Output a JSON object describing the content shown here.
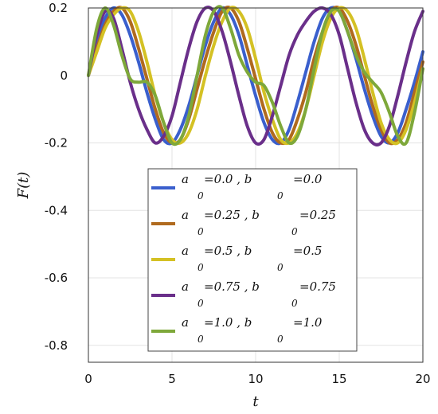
{
  "chart_data": {
    "type": "line",
    "xlabel": "t",
    "ylabel": "F(t)",
    "xlim": [
      0,
      20
    ],
    "ylim": [
      -0.85,
      0.2
    ],
    "xticks": [
      0,
      5,
      10,
      15,
      20
    ],
    "xtick_labels": [
      "0",
      "5",
      "10",
      "15",
      "20"
    ],
    "yticks": [
      0.2,
      0,
      -0.2,
      -0.4,
      -0.6,
      -0.8
    ],
    "ytick_labels": [
      "0.2",
      "0",
      "-0.2",
      "-0.4",
      "-0.6",
      "-0.8"
    ],
    "grid": true,
    "legend_position": "lower-right",
    "series": [
      {
        "label_a": "a",
        "sub_a": "0",
        "val_a": "=0.0 , b",
        "sub_b": "0",
        "val_b": "=0.0",
        "color": "#3a5fcd",
        "x": [
          0,
          0.5,
          1.0,
          1.5,
          2.0,
          2.5,
          3.0,
          3.5,
          4.0,
          4.5,
          5.0,
          5.5,
          6.0,
          6.5,
          7.0,
          7.5,
          8.0,
          8.5,
          9.0,
          9.5,
          10.0,
          10.5,
          11.0,
          11.5,
          12.0,
          12.5,
          13.0,
          13.5,
          14.0,
          14.5,
          15.0,
          15.5,
          16.0,
          16.5,
          17.0,
          17.5,
          18.0,
          18.5,
          19.0,
          19.5,
          20.0
        ],
        "y": [
          0.0,
          0.1,
          0.17,
          0.2,
          0.18,
          0.12,
          0.04,
          -0.05,
          -0.13,
          -0.19,
          -0.2,
          -0.16,
          -0.09,
          0.0,
          0.09,
          0.16,
          0.2,
          0.18,
          0.12,
          0.03,
          -0.06,
          -0.14,
          -0.19,
          -0.2,
          -0.16,
          -0.08,
          0.01,
          0.1,
          0.17,
          0.2,
          0.19,
          0.13,
          0.05,
          -0.04,
          -0.12,
          -0.18,
          -0.2,
          -0.17,
          -0.1,
          -0.02,
          0.07
        ]
      },
      {
        "label_a": "a",
        "sub_a": "0",
        "val_a": "=0.25 , b",
        "sub_b": "0",
        "val_b": "=0.25",
        "color": "#b06a1e",
        "x": [
          0,
          0.5,
          1.0,
          1.5,
          2.0,
          2.5,
          3.0,
          3.5,
          4.0,
          4.5,
          5.0,
          5.5,
          6.0,
          6.5,
          7.0,
          7.5,
          8.0,
          8.5,
          9.0,
          9.5,
          10.0,
          10.5,
          11.0,
          11.5,
          12.0,
          12.5,
          13.0,
          13.5,
          14.0,
          14.5,
          15.0,
          15.5,
          16.0,
          16.5,
          17.0,
          17.5,
          18.0,
          18.5,
          19.0,
          19.5,
          20.0
        ],
        "y": [
          0.0,
          0.08,
          0.15,
          0.19,
          0.2,
          0.16,
          0.08,
          -0.01,
          -0.1,
          -0.17,
          -0.2,
          -0.19,
          -0.13,
          -0.04,
          0.05,
          0.13,
          0.19,
          0.2,
          0.16,
          0.08,
          -0.01,
          -0.1,
          -0.17,
          -0.2,
          -0.19,
          -0.13,
          -0.05,
          0.05,
          0.13,
          0.19,
          0.2,
          0.16,
          0.09,
          0.0,
          -0.09,
          -0.16,
          -0.2,
          -0.19,
          -0.14,
          -0.05,
          0.04
        ]
      },
      {
        "label_a": "a",
        "sub_a": "0",
        "val_a": "=0.5 , b",
        "sub_b": "0",
        "val_b": "=0.5",
        "color": "#d4c124",
        "x": [
          0,
          0.5,
          1.0,
          1.5,
          2.0,
          2.5,
          3.0,
          3.5,
          4.0,
          4.5,
          5.0,
          5.5,
          6.0,
          6.5,
          7.0,
          7.5,
          8.0,
          8.5,
          9.0,
          9.5,
          10.0,
          10.5,
          11.0,
          11.5,
          12.0,
          12.5,
          13.0,
          13.5,
          14.0,
          14.5,
          15.0,
          15.5,
          16.0,
          16.5,
          17.0,
          17.5,
          18.0,
          18.5,
          19.0,
          19.5,
          20.0
        ],
        "y": [
          0.0,
          0.07,
          0.14,
          0.18,
          0.2,
          0.19,
          0.13,
          0.04,
          -0.06,
          -0.14,
          -0.19,
          -0.2,
          -0.17,
          -0.1,
          0.0,
          0.09,
          0.16,
          0.2,
          0.19,
          0.14,
          0.05,
          -0.05,
          -0.13,
          -0.19,
          -0.2,
          -0.17,
          -0.1,
          0.0,
          0.1,
          0.17,
          0.2,
          0.19,
          0.14,
          0.05,
          -0.05,
          -0.14,
          -0.19,
          -0.2,
          -0.16,
          -0.08,
          0.02
        ]
      },
      {
        "label_a": "a",
        "sub_a": "0",
        "val_a": "=0.75 , b",
        "sub_b": "0",
        "val_b": "=0.75",
        "color": "#6a2f8a",
        "x": [
          0,
          0.5,
          1.0,
          1.5,
          2.0,
          2.5,
          3.0,
          3.5,
          4.0,
          4.5,
          5.0,
          5.5,
          6.0,
          6.5,
          7.0,
          7.5,
          8.0,
          8.5,
          9.0,
          9.5,
          10.0,
          10.5,
          11.0,
          11.5,
          12.0,
          12.5,
          13.0,
          13.5,
          14.0,
          14.5,
          15.0,
          15.5,
          16.0,
          16.5,
          17.0,
          17.5,
          18.0,
          18.5,
          19.0,
          19.5,
          20.0
        ],
        "y": [
          0.0,
          0.12,
          0.19,
          0.17,
          0.08,
          -0.02,
          -0.1,
          -0.16,
          -0.2,
          -0.18,
          -0.12,
          -0.02,
          0.08,
          0.16,
          0.2,
          0.19,
          0.13,
          0.04,
          -0.06,
          -0.15,
          -0.2,
          -0.19,
          -0.12,
          -0.03,
          0.06,
          0.12,
          0.16,
          0.19,
          0.2,
          0.18,
          0.12,
          0.02,
          -0.08,
          -0.16,
          -0.2,
          -0.2,
          -0.15,
          -0.06,
          0.04,
          0.13,
          0.19
        ]
      },
      {
        "label_a": "a",
        "sub_a": "0",
        "val_a": "=1.0 , b",
        "sub_b": "0",
        "val_b": "=1.0",
        "color": "#7ea83a",
        "x": [
          0,
          0.5,
          1.0,
          1.5,
          2.0,
          2.5,
          3.0,
          3.5,
          4.0,
          4.5,
          5.0,
          5.5,
          6.0,
          6.5,
          7.0,
          7.5,
          8.0,
          8.5,
          9.0,
          9.5,
          10.0,
          10.5,
          11.0,
          11.5,
          12.0,
          12.5,
          13.0,
          13.5,
          14.0,
          14.5,
          15.0,
          15.5,
          16.0,
          16.5,
          17.0,
          17.5,
          18.0,
          18.5,
          19.0,
          19.5,
          20.0
        ],
        "y": [
          0.0,
          0.14,
          0.2,
          0.15,
          0.06,
          -0.01,
          -0.02,
          -0.02,
          -0.06,
          -0.14,
          -0.2,
          -0.19,
          -0.12,
          0.0,
          0.12,
          0.19,
          0.2,
          0.14,
          0.06,
          0.01,
          -0.02,
          -0.03,
          -0.08,
          -0.15,
          -0.2,
          -0.18,
          -0.1,
          0.02,
          0.13,
          0.19,
          0.19,
          0.13,
          0.06,
          0.01,
          -0.02,
          -0.05,
          -0.11,
          -0.18,
          -0.2,
          -0.11,
          0.02
        ]
      }
    ]
  }
}
